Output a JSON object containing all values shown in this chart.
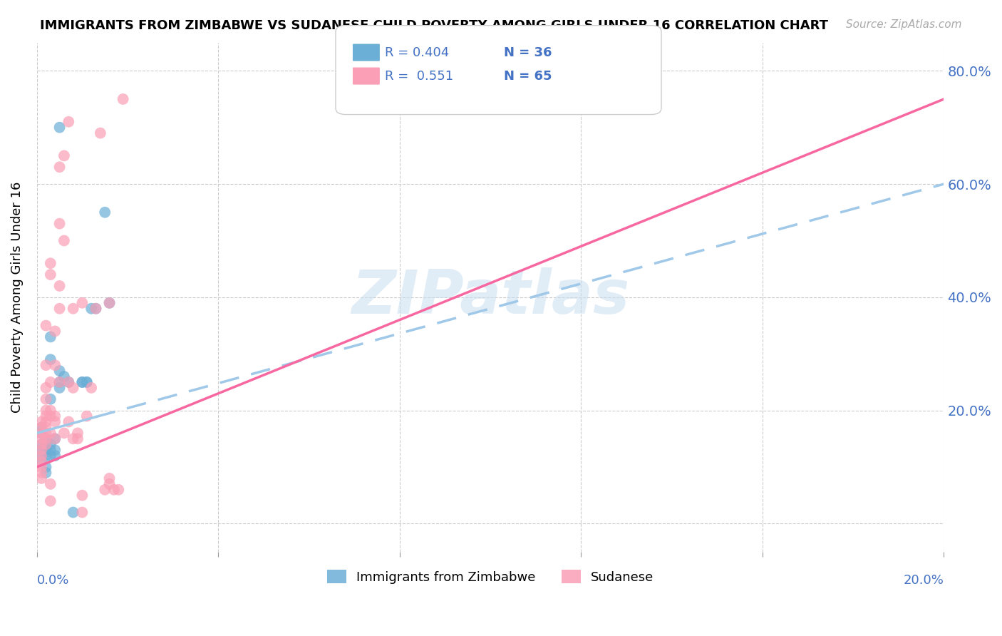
{
  "title": "IMMIGRANTS FROM ZIMBABWE VS SUDANESE CHILD POVERTY AMONG GIRLS UNDER 16 CORRELATION CHART",
  "source": "Source: ZipAtlas.com",
  "ylabel": "Child Poverty Among Girls Under 16",
  "xlim": [
    0.0,
    0.2
  ],
  "ylim": [
    -0.05,
    0.85
  ],
  "legend_blue_R": "R = 0.404",
  "legend_blue_N": "N = 36",
  "legend_pink_R": "R =  0.551",
  "legend_pink_N": "N = 65",
  "blue_color": "#6baed6",
  "pink_color": "#fa9fb5",
  "trend_blue": "#a0c8e8",
  "trend_pink": "#f768a1",
  "watermark": "ZIPatlas",
  "blue_scatter": [
    [
      0.001,
      0.17
    ],
    [
      0.001,
      0.16
    ],
    [
      0.001,
      0.14
    ],
    [
      0.001,
      0.13
    ],
    [
      0.001,
      0.12
    ],
    [
      0.001,
      0.11
    ],
    [
      0.002,
      0.15
    ],
    [
      0.002,
      0.14
    ],
    [
      0.002,
      0.13
    ],
    [
      0.002,
      0.12
    ],
    [
      0.002,
      0.1
    ],
    [
      0.002,
      0.09
    ],
    [
      0.003,
      0.33
    ],
    [
      0.003,
      0.29
    ],
    [
      0.003,
      0.22
    ],
    [
      0.003,
      0.14
    ],
    [
      0.003,
      0.13
    ],
    [
      0.003,
      0.12
    ],
    [
      0.004,
      0.15
    ],
    [
      0.004,
      0.13
    ],
    [
      0.004,
      0.12
    ],
    [
      0.005,
      0.7
    ],
    [
      0.005,
      0.27
    ],
    [
      0.005,
      0.25
    ],
    [
      0.005,
      0.24
    ],
    [
      0.006,
      0.26
    ],
    [
      0.007,
      0.25
    ],
    [
      0.008,
      0.02
    ],
    [
      0.01,
      0.25
    ],
    [
      0.01,
      0.25
    ],
    [
      0.011,
      0.25
    ],
    [
      0.011,
      0.25
    ],
    [
      0.012,
      0.38
    ],
    [
      0.013,
      0.38
    ],
    [
      0.015,
      0.55
    ],
    [
      0.016,
      0.39
    ]
  ],
  "pink_scatter": [
    [
      0.001,
      0.18
    ],
    [
      0.001,
      0.17
    ],
    [
      0.001,
      0.16
    ],
    [
      0.001,
      0.15
    ],
    [
      0.001,
      0.14
    ],
    [
      0.001,
      0.13
    ],
    [
      0.001,
      0.12
    ],
    [
      0.001,
      0.11
    ],
    [
      0.001,
      0.1
    ],
    [
      0.001,
      0.09
    ],
    [
      0.001,
      0.08
    ],
    [
      0.002,
      0.35
    ],
    [
      0.002,
      0.28
    ],
    [
      0.002,
      0.24
    ],
    [
      0.002,
      0.22
    ],
    [
      0.002,
      0.2
    ],
    [
      0.002,
      0.19
    ],
    [
      0.002,
      0.18
    ],
    [
      0.002,
      0.17
    ],
    [
      0.002,
      0.16
    ],
    [
      0.002,
      0.15
    ],
    [
      0.002,
      0.14
    ],
    [
      0.003,
      0.46
    ],
    [
      0.003,
      0.44
    ],
    [
      0.003,
      0.25
    ],
    [
      0.003,
      0.2
    ],
    [
      0.003,
      0.19
    ],
    [
      0.003,
      0.16
    ],
    [
      0.003,
      0.07
    ],
    [
      0.003,
      0.04
    ],
    [
      0.004,
      0.34
    ],
    [
      0.004,
      0.28
    ],
    [
      0.004,
      0.19
    ],
    [
      0.004,
      0.18
    ],
    [
      0.004,
      0.15
    ],
    [
      0.005,
      0.63
    ],
    [
      0.005,
      0.53
    ],
    [
      0.005,
      0.42
    ],
    [
      0.005,
      0.38
    ],
    [
      0.005,
      0.25
    ],
    [
      0.006,
      0.5
    ],
    [
      0.006,
      0.65
    ],
    [
      0.006,
      0.16
    ],
    [
      0.007,
      0.71
    ],
    [
      0.007,
      0.25
    ],
    [
      0.007,
      0.18
    ],
    [
      0.008,
      0.38
    ],
    [
      0.008,
      0.24
    ],
    [
      0.008,
      0.15
    ],
    [
      0.009,
      0.16
    ],
    [
      0.009,
      0.15
    ],
    [
      0.01,
      0.39
    ],
    [
      0.01,
      0.05
    ],
    [
      0.01,
      0.02
    ],
    [
      0.011,
      0.19
    ],
    [
      0.012,
      0.24
    ],
    [
      0.013,
      0.38
    ],
    [
      0.014,
      0.69
    ],
    [
      0.015,
      0.06
    ],
    [
      0.016,
      0.39
    ],
    [
      0.016,
      0.08
    ],
    [
      0.016,
      0.07
    ],
    [
      0.017,
      0.06
    ],
    [
      0.018,
      0.06
    ],
    [
      0.019,
      0.75
    ]
  ],
  "blue_line_x": [
    0.0,
    0.2
  ],
  "blue_line_y": [
    0.16,
    0.6
  ],
  "pink_line_x": [
    0.0,
    0.2
  ],
  "pink_line_y": [
    0.1,
    0.75
  ]
}
